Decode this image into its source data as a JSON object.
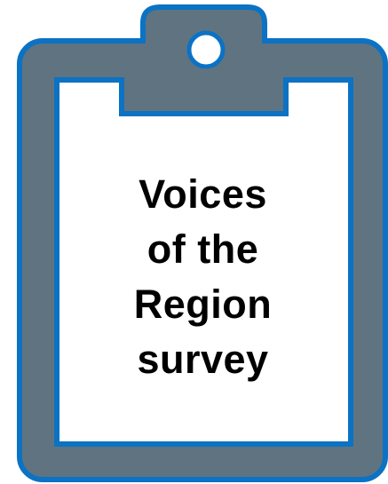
{
  "clipboard": {
    "title_lines": [
      "Voices",
      "of the",
      "Region",
      "survey"
    ]
  },
  "colors": {
    "board_fill": "#5f7480",
    "board_outline": "#0b72c4",
    "paper": "#ffffff",
    "text": "#000000"
  },
  "icons": {
    "clipboard": "clipboard-icon",
    "clip_hole": "clip-hole-icon"
  }
}
